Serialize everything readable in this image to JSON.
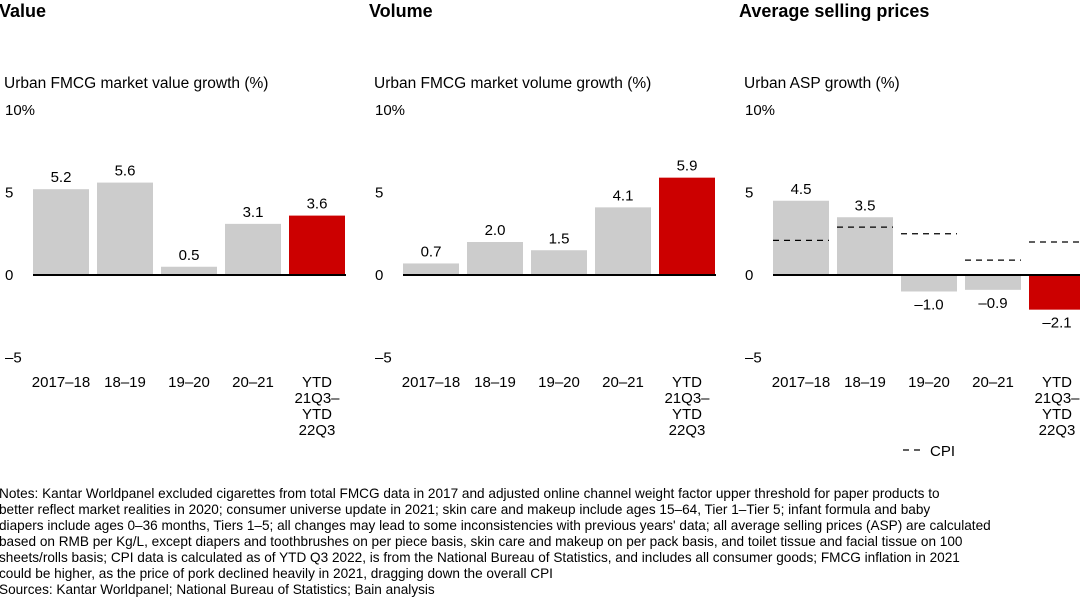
{
  "chart_data": [
    {
      "type": "bar",
      "title": "Value",
      "subtitle": "Urban FMCG market value growth (%)",
      "categories": [
        [
          "2017–18"
        ],
        [
          "18–19"
        ],
        [
          "19–20"
        ],
        [
          "20–21"
        ],
        [
          "YTD",
          "21Q3–",
          "YTD",
          "22Q3"
        ]
      ],
      "values": [
        5.2,
        5.6,
        0.5,
        3.1,
        3.6
      ],
      "labels": [
        "5.2",
        "5.6",
        "0.5",
        "3.1",
        "3.6"
      ],
      "highlight_index": 4,
      "ylim": [
        -5,
        10
      ],
      "yticks": [
        {
          "v": 10,
          "label": "10%"
        },
        {
          "v": 5,
          "label": "5"
        },
        {
          "v": 0,
          "label": "0"
        },
        {
          "v": -5,
          "label": "–5"
        }
      ]
    },
    {
      "type": "bar",
      "title": "Volume",
      "subtitle": "Urban FMCG market volume growth (%)",
      "categories": [
        [
          "2017–18"
        ],
        [
          "18–19"
        ],
        [
          "19–20"
        ],
        [
          "20–21"
        ],
        [
          "YTD",
          "21Q3–",
          "YTD",
          "22Q3"
        ]
      ],
      "values": [
        0.7,
        2.0,
        1.5,
        4.1,
        5.9
      ],
      "labels": [
        "0.7",
        "2.0",
        "1.5",
        "4.1",
        "5.9"
      ],
      "highlight_index": 4,
      "ylim": [
        -5,
        10
      ],
      "yticks": [
        {
          "v": 10,
          "label": "10%"
        },
        {
          "v": 5,
          "label": "5"
        },
        {
          "v": 0,
          "label": "0"
        },
        {
          "v": -5,
          "label": "–5"
        }
      ]
    },
    {
      "type": "bar",
      "title": "Average selling prices",
      "subtitle": "Urban ASP growth (%)",
      "categories": [
        [
          "2017–18"
        ],
        [
          "18–19"
        ],
        [
          "19–20"
        ],
        [
          "20–21"
        ],
        [
          "YTD",
          "21Q3–",
          "YTD",
          "22Q3"
        ]
      ],
      "values": [
        4.5,
        3.5,
        -1.0,
        -0.9,
        -2.1
      ],
      "labels": [
        "4.5",
        "3.5",
        "–1.0",
        "–0.9",
        "–2.1"
      ],
      "highlight_index": 4,
      "cpi": {
        "name": "CPI",
        "values": [
          2.1,
          2.9,
          2.5,
          0.9,
          2.0
        ],
        "style": "dashed"
      },
      "legend": {
        "label": "CPI",
        "symbol": "- -",
        "placement": "bottom"
      },
      "ylim": [
        -5,
        10
      ],
      "yticks": [
        {
          "v": 10,
          "label": "10%"
        },
        {
          "v": 5,
          "label": "5"
        },
        {
          "v": 0,
          "label": "0"
        },
        {
          "v": -5,
          "label": "–5"
        }
      ]
    }
  ],
  "colors": {
    "bar": "#cccccc",
    "highlight": "#cc0000",
    "axis": "#000000",
    "cpi": "#000000"
  },
  "notes": [
    "Notes: Kantar Worldpanel excluded cigarettes from total FMCG data in 2017 and adjusted online channel weight factor upper threshold for paper products to",
    "better reflect market realities in 2020; consumer universe update in 2021; skin care and makeup include ages 15–64, Tier 1–Tier 5; infant formula and baby",
    "diapers include ages 0–36 months, Tiers 1–5; all changes may lead to some inconsistencies with previous years' data; all average selling prices (ASP) are calculated",
    "based on RMB per Kg/L, except diapers and toothbrushes on per piece basis, skin care and makeup on per pack basis, and toilet tissue and facial tissue on 100",
    "sheets/rolls basis; CPI data is calculated as of YTD Q3 2022, is from the National Bureau of Statistics, and includes all consumer goods; FMCG inflation in 2021",
    "could be higher, as the price of pork declined heavily in 2021, dragging down the overall CPI"
  ],
  "sources": "Sources: Kantar Worldpanel; National Bureau of Statistics; Bain analysis"
}
